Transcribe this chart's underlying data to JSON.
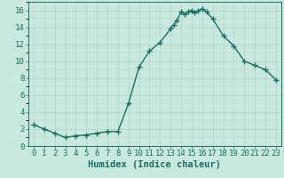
{
  "x": [
    0,
    1,
    2,
    3,
    4,
    5,
    6,
    7,
    8,
    9,
    10,
    11,
    12,
    13,
    13.3,
    13.6,
    14,
    14.3,
    14.7,
    15,
    15.3,
    15.6,
    16,
    16.4,
    17,
    18,
    19,
    20,
    21,
    22,
    23
  ],
  "y": [
    2.5,
    2.0,
    1.5,
    1.0,
    1.2,
    1.3,
    1.5,
    1.7,
    1.7,
    5.0,
    9.3,
    11.2,
    12.2,
    13.8,
    14.3,
    14.8,
    15.8,
    15.5,
    15.8,
    16.0,
    15.7,
    15.9,
    16.2,
    15.8,
    15.0,
    13.0,
    11.8,
    10.0,
    9.5,
    9.0,
    7.8
  ],
  "line_color": "#1a7060",
  "marker": "+",
  "marker_size": 4,
  "marker_lw": 1.0,
  "bg_color": "#c8e8e0",
  "grid_color_major": "#b0d0c8",
  "grid_color_minor": "#b0d0c8",
  "xlabel": "Humidex (Indice chaleur)",
  "ylim": [
    0,
    17
  ],
  "xlim": [
    -0.5,
    23.5
  ],
  "yticks": [
    0,
    2,
    4,
    6,
    8,
    10,
    12,
    14,
    16
  ],
  "xtick_labels": [
    "0",
    "1",
    "2",
    "3",
    "4",
    "5",
    "6",
    "7",
    "8",
    "9",
    "10",
    "11",
    "12",
    "13",
    "14",
    "15",
    "16",
    "17",
    "18",
    "19",
    "20",
    "21",
    "22",
    "23"
  ],
  "tick_fontsize": 6.5,
  "xlabel_fontsize": 7.5,
  "line_width": 1.0
}
